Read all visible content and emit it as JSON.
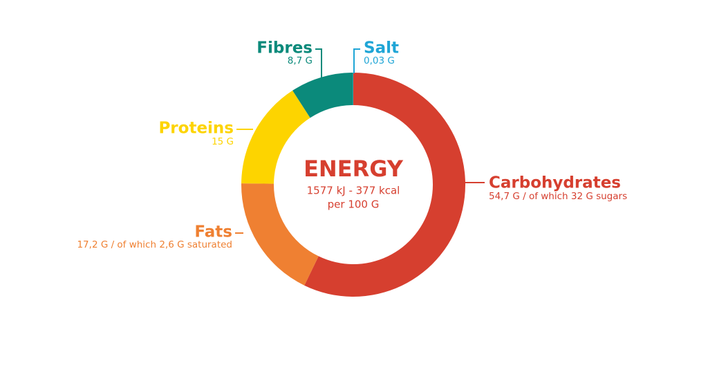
{
  "chart_data": {
    "type": "pie",
    "center_title": "ENERGY",
    "center_lines": [
      "1577 kJ - 377 kcal",
      "per 100 G"
    ],
    "categories": [
      "Carbohydrates",
      "Fats",
      "Proteins",
      "Fibres",
      "Salt"
    ],
    "values": [
      54.7,
      17.2,
      15,
      8.7,
      0.03
    ],
    "value_labels": [
      "54,7 G / of which 32 G sugars",
      "17,2 G / of which 2,6 G saturated",
      "15 G",
      "8,7 G",
      "0,03 G"
    ],
    "colors": [
      "#d63f2f",
      "#ef8032",
      "#fdd400",
      "#0b8a7b",
      "#1fa5d6"
    ]
  }
}
